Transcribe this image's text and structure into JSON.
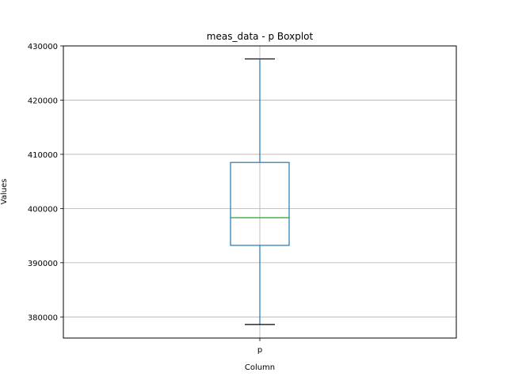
{
  "chart_data": {
    "type": "boxplot",
    "title": "meas_data - p Boxplot",
    "xlabel": "Column",
    "ylabel": "Values",
    "categories": [
      "p"
    ],
    "boxes": [
      {
        "category": "p",
        "whisker_low": 378600,
        "q1": 393200,
        "median": 398300,
        "q3": 408500,
        "whisker_high": 427600
      }
    ],
    "ylim": [
      376100,
      430000
    ],
    "yticks": [
      380000,
      390000,
      400000,
      410000,
      420000,
      430000
    ],
    "ytick_labels": [
      "380000",
      "390000",
      "400000",
      "410000",
      "420000",
      "430000"
    ],
    "grid": true,
    "colors": {
      "box": "#1f77b4",
      "median": "#2ca02c",
      "whisker": "#1f77b4",
      "cap": "#000000",
      "grid": "#b0b0b0"
    }
  }
}
